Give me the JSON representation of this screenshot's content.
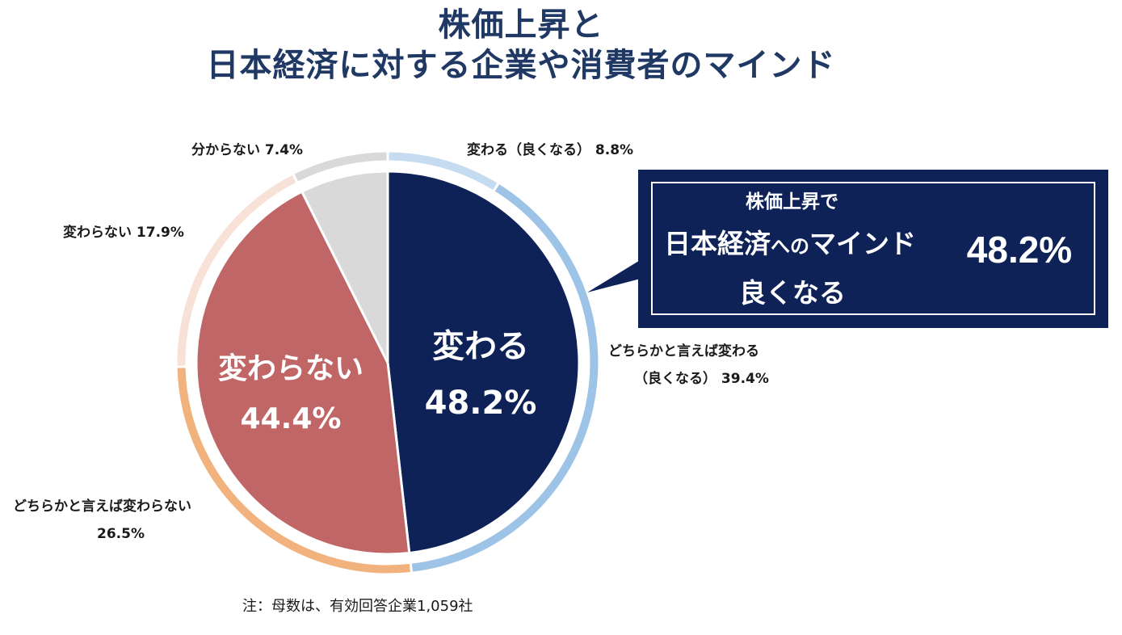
{
  "title": {
    "line1": "株価上昇と",
    "line2": "日本経済に対する企業や消費者のマインド"
  },
  "chart_data": {
    "type": "pie",
    "subtype": "nested-donut",
    "title": "株価上昇と日本経済に対する企業や消費者のマインド",
    "inner": [
      {
        "name": "変わる",
        "value": 48.2,
        "label": "48.2%",
        "color": "#0f2258"
      },
      {
        "name": "変わらない",
        "value": 44.4,
        "label": "44.4%",
        "color": "#c06666"
      },
      {
        "name": "",
        "value": 7.4,
        "label": "",
        "color": "#d9d9d9"
      }
    ],
    "outer": [
      {
        "name": "変わる（良くなる）",
        "value": 8.8,
        "label": "変わる（良くなる） 8.8%",
        "color": "#c5dbf0"
      },
      {
        "name": "どちらかと言えば変わる（良くなる）",
        "value": 39.4,
        "label_line1": "どちらかと言えば変わる",
        "label_line2": "（良くなる） 39.4%",
        "color": "#9dc3e6"
      },
      {
        "name": "どちらかと言えば変わらない",
        "value": 26.5,
        "label_line1": "どちらかと言えば変わらない",
        "label_line2": "26.5%",
        "color": "#f2b27e"
      },
      {
        "name": "変わらない",
        "value": 17.9,
        "label": "変わらない 17.9%",
        "color": "#f8e2d7"
      },
      {
        "name": "分からない",
        "value": 7.4,
        "label": "分からない 7.4%",
        "color": "#d9d9d9"
      }
    ]
  },
  "callout": {
    "line1": "株価上昇で",
    "line2a": "日本経済",
    "line2b": "への",
    "line2c": "マインド",
    "line3": "良くなる",
    "value": "48.2%",
    "bg": "#0f2258"
  },
  "note": "注：母数は、有効回答企業1,059社"
}
